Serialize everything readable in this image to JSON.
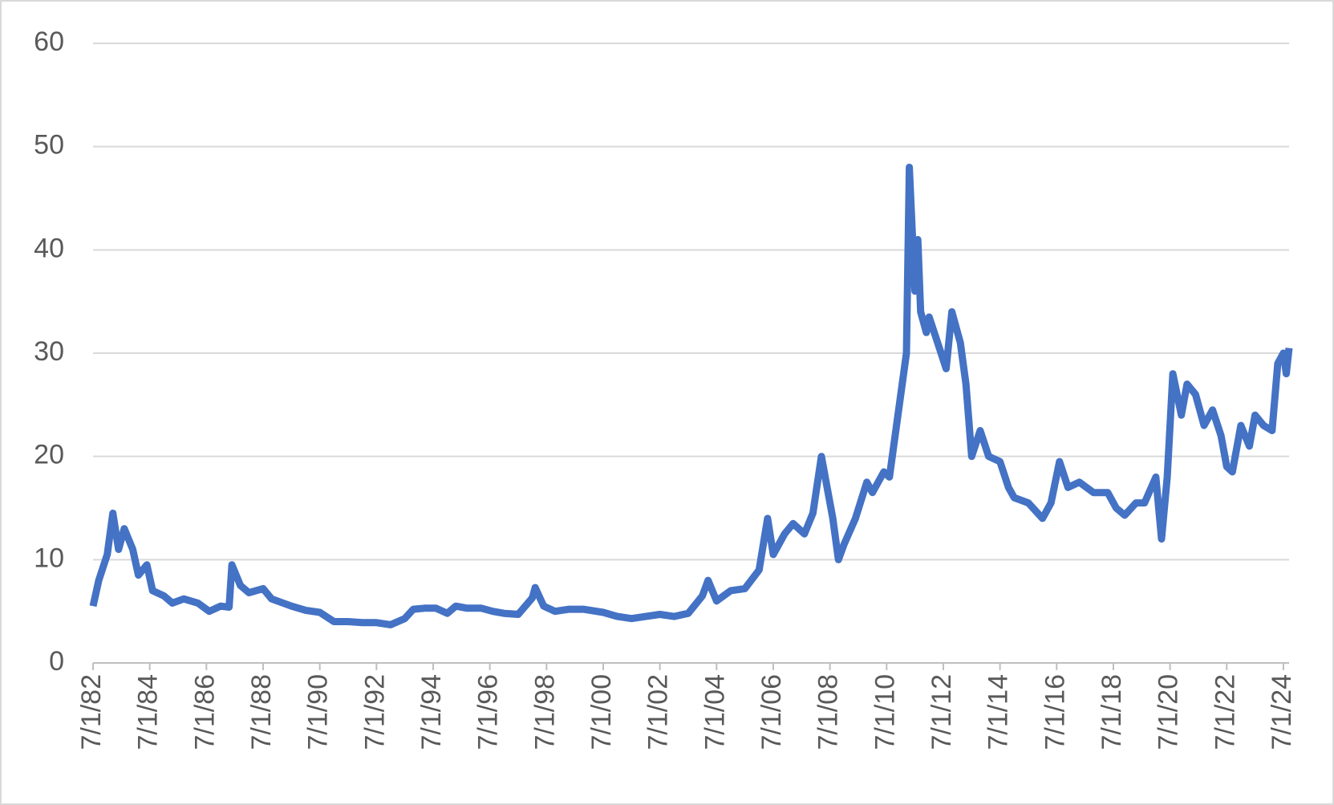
{
  "chart_data": {
    "type": "line",
    "x": [
      1982.5,
      1982.7,
      1983.0,
      1983.2,
      1983.4,
      1983.6,
      1983.9,
      1984.1,
      1984.4,
      1984.6,
      1985.0,
      1985.3,
      1985.7,
      1986.2,
      1986.6,
      1987.0,
      1987.3,
      1987.4,
      1987.7,
      1988.0,
      1988.5,
      1988.8,
      1989.5,
      1990.0,
      1990.5,
      1991.0,
      1991.5,
      1992.0,
      1992.5,
      1993.0,
      1993.5,
      1993.8,
      1994.2,
      1994.6,
      1995.0,
      1995.3,
      1995.7,
      1996.2,
      1996.6,
      1997.0,
      1997.5,
      1998.0,
      1998.1,
      1998.4,
      1998.8,
      1999.3,
      1999.8,
      2000.5,
      2001.0,
      2001.5,
      2002.0,
      2002.5,
      2003.0,
      2003.5,
      2004.0,
      2004.2,
      2004.5,
      2005.0,
      2005.5,
      2006.0,
      2006.3,
      2006.5,
      2006.9,
      2007.2,
      2007.6,
      2007.9,
      2008.2,
      2008.4,
      2008.6,
      2008.8,
      2009.0,
      2009.4,
      2009.8,
      2010.0,
      2010.4,
      2010.6,
      2010.9,
      2011.2,
      2011.3,
      2011.5,
      2011.6,
      2011.7,
      2011.9,
      2012.0,
      2012.3,
      2012.6,
      2012.8,
      2013.1,
      2013.3,
      2013.5,
      2013.8,
      2014.1,
      2014.5,
      2014.8,
      2015.0,
      2015.5,
      2016.0,
      2016.3,
      2016.6,
      2016.9,
      2017.3,
      2017.8,
      2018.3,
      2018.6,
      2018.9,
      2019.3,
      2019.6,
      2020.0,
      2020.2,
      2020.4,
      2020.6,
      2020.9,
      2021.1,
      2021.4,
      2021.7,
      2022.0,
      2022.3,
      2022.5,
      2022.7,
      2023.0,
      2023.3,
      2023.5,
      2023.8,
      2024.1,
      2024.3,
      2024.5,
      2024.6,
      2024.7
    ],
    "series": [
      {
        "color": "#4472c4",
        "values": [
          5.5,
          8,
          10.5,
          14.5,
          11,
          13,
          11,
          8.5,
          9.5,
          7,
          6.5,
          5.8,
          6.2,
          5.8,
          5,
          5.5,
          5.4,
          9.5,
          7.5,
          6.8,
          7.2,
          6.2,
          5.5,
          5.1,
          4.9,
          4.0,
          4.0,
          3.9,
          3.9,
          3.7,
          4.3,
          5.2,
          5.3,
          5.3,
          4.8,
          5.5,
          5.3,
          5.3,
          5.0,
          4.8,
          4.7,
          6.3,
          7.3,
          5.5,
          5.0,
          5.2,
          5.2,
          4.9,
          4.5,
          4.3,
          4.5,
          4.7,
          4.5,
          4.8,
          6.5,
          8.0,
          6.0,
          7.0,
          7.2,
          9.0,
          14.0,
          10.5,
          12.5,
          13.5,
          12.5,
          14.5,
          20,
          17,
          14,
          10,
          11.5,
          14,
          17.5,
          16.5,
          18.5,
          18,
          24,
          30,
          48,
          36,
          41,
          34,
          32,
          33.5,
          31,
          28.5,
          34,
          31,
          27,
          20,
          22.5,
          20,
          19.5,
          17,
          16,
          15.5,
          14,
          15.5,
          19.5,
          17,
          17.5,
          16.5,
          16.5,
          15.0,
          14.3,
          15.5,
          15.5,
          18,
          12,
          18,
          28,
          24,
          27,
          26,
          23,
          24.5,
          22,
          19,
          18.5,
          23,
          21,
          24,
          23,
          22.5,
          29,
          30,
          28,
          30.5
        ]
      }
    ],
    "xlim": [
      1982.5,
      2024.7
    ],
    "xticks": [
      {
        "value": 1982.5,
        "label": "7/1/82"
      },
      {
        "value": 1984.5,
        "label": "7/1/84"
      },
      {
        "value": 1986.5,
        "label": "7/1/86"
      },
      {
        "value": 1988.5,
        "label": "7/1/88"
      },
      {
        "value": 1990.5,
        "label": "7/1/90"
      },
      {
        "value": 1992.5,
        "label": "7/1/92"
      },
      {
        "value": 1994.5,
        "label": "7/1/94"
      },
      {
        "value": 1996.5,
        "label": "7/1/96"
      },
      {
        "value": 1998.5,
        "label": "7/1/98"
      },
      {
        "value": 2000.5,
        "label": "7/1/00"
      },
      {
        "value": 2002.5,
        "label": "7/1/02"
      },
      {
        "value": 2004.5,
        "label": "7/1/04"
      },
      {
        "value": 2006.5,
        "label": "7/1/06"
      },
      {
        "value": 2008.5,
        "label": "7/1/08"
      },
      {
        "value": 2010.5,
        "label": "7/1/10"
      },
      {
        "value": 2012.5,
        "label": "7/1/12"
      },
      {
        "value": 2014.5,
        "label": "7/1/14"
      },
      {
        "value": 2016.5,
        "label": "7/1/16"
      },
      {
        "value": 2018.5,
        "label": "7/1/18"
      },
      {
        "value": 2020.5,
        "label": "7/1/20"
      },
      {
        "value": 2022.5,
        "label": "7/1/22"
      },
      {
        "value": 2024.5,
        "label": "7/1/24"
      }
    ],
    "ylim": [
      0,
      60
    ],
    "yticks": [
      0,
      10,
      20,
      30,
      40,
      50,
      60
    ],
    "grid": true
  }
}
